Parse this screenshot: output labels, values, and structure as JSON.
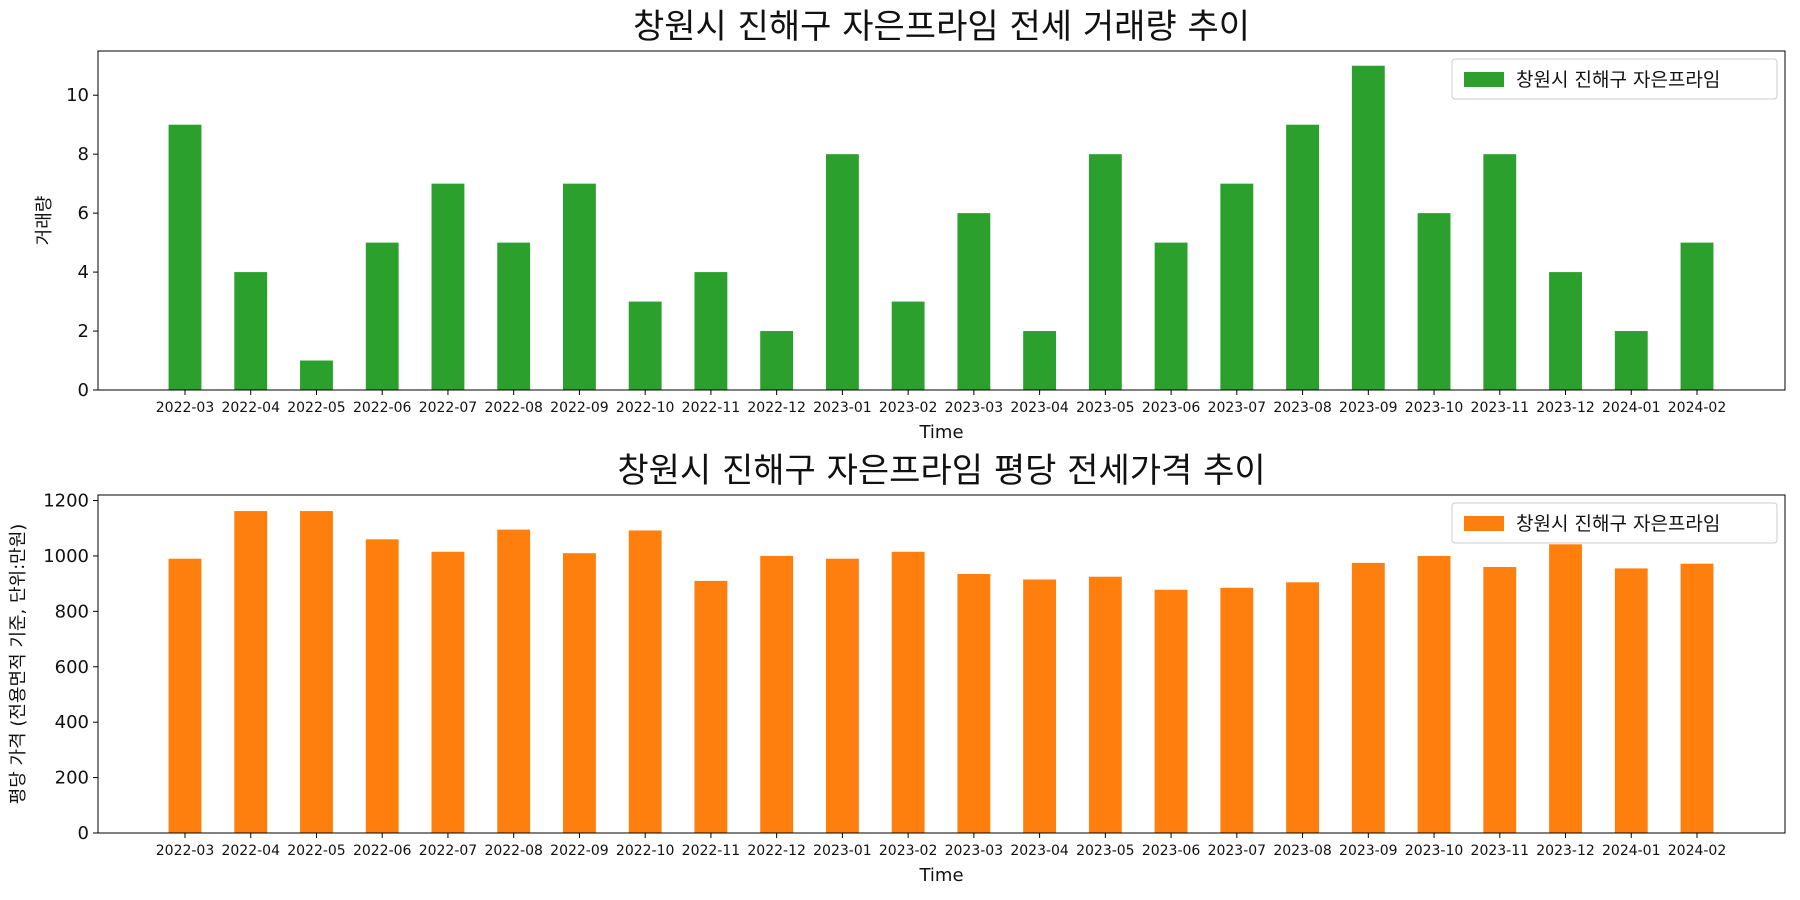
{
  "chart_data": [
    {
      "type": "bar",
      "title": "창원시 진해구 자은프라임 전세 거래량 추이",
      "xlabel": "Time",
      "ylabel": "거래량",
      "ylim": [
        0,
        11.5
      ],
      "yticks": [
        0,
        2,
        4,
        6,
        8,
        10
      ],
      "grid": false,
      "legend_position": "top-right",
      "categories": [
        "2022-03",
        "2022-04",
        "2022-05",
        "2022-06",
        "2022-07",
        "2022-08",
        "2022-09",
        "2022-10",
        "2022-11",
        "2022-12",
        "2023-01",
        "2023-02",
        "2023-03",
        "2023-04",
        "2023-05",
        "2023-06",
        "2023-07",
        "2023-08",
        "2023-09",
        "2023-10",
        "2023-11",
        "2023-12",
        "2024-01",
        "2024-02"
      ],
      "series": [
        {
          "name": "창원시 진해구 자은프라임",
          "color": "#2ca02c",
          "values": [
            9,
            4,
            1,
            5,
            7,
            5,
            7,
            3,
            4,
            2,
            8,
            3,
            6,
            2,
            8,
            5,
            7,
            9,
            11,
            6,
            8,
            4,
            2,
            5
          ]
        }
      ]
    },
    {
      "type": "bar",
      "title": "창원시 진해구 자은프라임 평당 전세가격 추이",
      "xlabel": "Time",
      "ylabel": "평당 가격 (전용면적 기준, 단위:만원)",
      "ylim": [
        0,
        1220
      ],
      "yticks": [
        0,
        200,
        400,
        600,
        800,
        1000,
        1200
      ],
      "grid": false,
      "legend_position": "top-right",
      "categories": [
        "2022-03",
        "2022-04",
        "2022-05",
        "2022-06",
        "2022-07",
        "2022-08",
        "2022-09",
        "2022-10",
        "2022-11",
        "2022-12",
        "2023-01",
        "2023-02",
        "2023-03",
        "2023-04",
        "2023-05",
        "2023-06",
        "2023-07",
        "2023-08",
        "2023-09",
        "2023-10",
        "2023-11",
        "2023-12",
        "2024-01",
        "2024-02"
      ],
      "series": [
        {
          "name": "창원시 진해구 자은프라임",
          "color": "#ff7f0e",
          "values": [
            990,
            1162,
            1162,
            1060,
            1015,
            1095,
            1010,
            1092,
            910,
            1000,
            990,
            1015,
            935,
            915,
            925,
            878,
            885,
            905,
            975,
            1000,
            960,
            1042,
            955,
            972
          ]
        }
      ]
    }
  ]
}
